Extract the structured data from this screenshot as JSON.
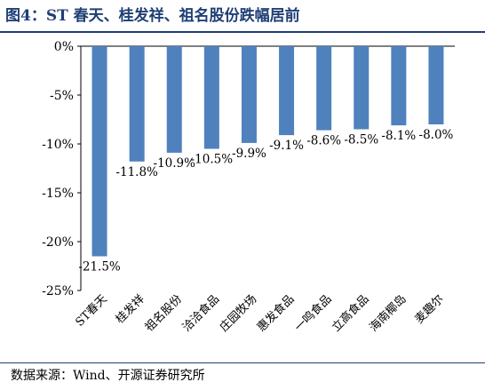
{
  "header": {
    "title": "图4：ST 春天、桂发祥、祖名股份跌幅居前"
  },
  "footer": {
    "source": "数据来源：Wind、开源证券研究所"
  },
  "colors": {
    "bar": "#4f81bd",
    "accent": "#1f3f75",
    "axis": "#000000"
  },
  "chart_data": {
    "type": "bar",
    "title": "",
    "xlabel": "",
    "ylabel": "",
    "categories": [
      "ST春天",
      "桂发祥",
      "祖名股份",
      "洽洽食品",
      "庄园牧场",
      "惠发食品",
      "一鸣食品",
      "立高食品",
      "海南椰岛",
      "麦趣尔"
    ],
    "values": [
      -21.5,
      -11.8,
      -10.9,
      -10.5,
      -9.9,
      -9.1,
      -8.6,
      -8.5,
      -8.1,
      -8.0
    ],
    "value_labels": [
      "-21.5%",
      "-11.8%",
      "-10.9%",
      "-10.5%",
      "-9.9%",
      "-9.1%",
      "-8.6%",
      "-8.5%",
      "-8.1%",
      "-8.0%"
    ],
    "ylim": [
      -25,
      0
    ],
    "yticks": [
      0,
      -5,
      -10,
      -15,
      -20,
      -25
    ],
    "ytick_labels": [
      "0%",
      "-5%",
      "-10%",
      "-15%",
      "-20%",
      "-25%"
    ],
    "grid": false,
    "legend": "none"
  }
}
